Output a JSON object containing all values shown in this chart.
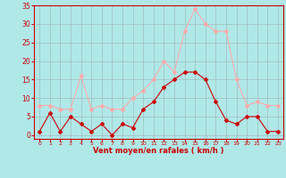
{
  "hours": [
    0,
    1,
    2,
    3,
    4,
    5,
    6,
    7,
    8,
    9,
    10,
    11,
    12,
    13,
    14,
    15,
    16,
    17,
    18,
    19,
    20,
    21,
    22,
    23
  ],
  "vent_moyen": [
    1,
    6,
    1,
    5,
    3,
    1,
    3,
    0,
    3,
    2,
    7,
    9,
    13,
    15,
    17,
    17,
    15,
    9,
    4,
    3,
    5,
    5,
    1,
    1
  ],
  "rafales": [
    8,
    8,
    7,
    7,
    16,
    7,
    8,
    7,
    7,
    10,
    12,
    15,
    20,
    17,
    28,
    34,
    30,
    28,
    28,
    15,
    8,
    9,
    8,
    8
  ],
  "color_moyen": "#cc0000",
  "color_rafales": "#ffaaaa",
  "bg_color": "#b0e8e8",
  "grid_color": "#999999",
  "xlabel": "Vent moyen/en rafales ( km/h )",
  "xlabel_color": "#cc0000",
  "tick_color": "#cc0000",
  "ylim": [
    -1,
    35
  ],
  "yticks": [
    0,
    5,
    10,
    15,
    20,
    25,
    30,
    35
  ],
  "marker": "D",
  "marker_size": 2.0,
  "line_width": 0.8
}
